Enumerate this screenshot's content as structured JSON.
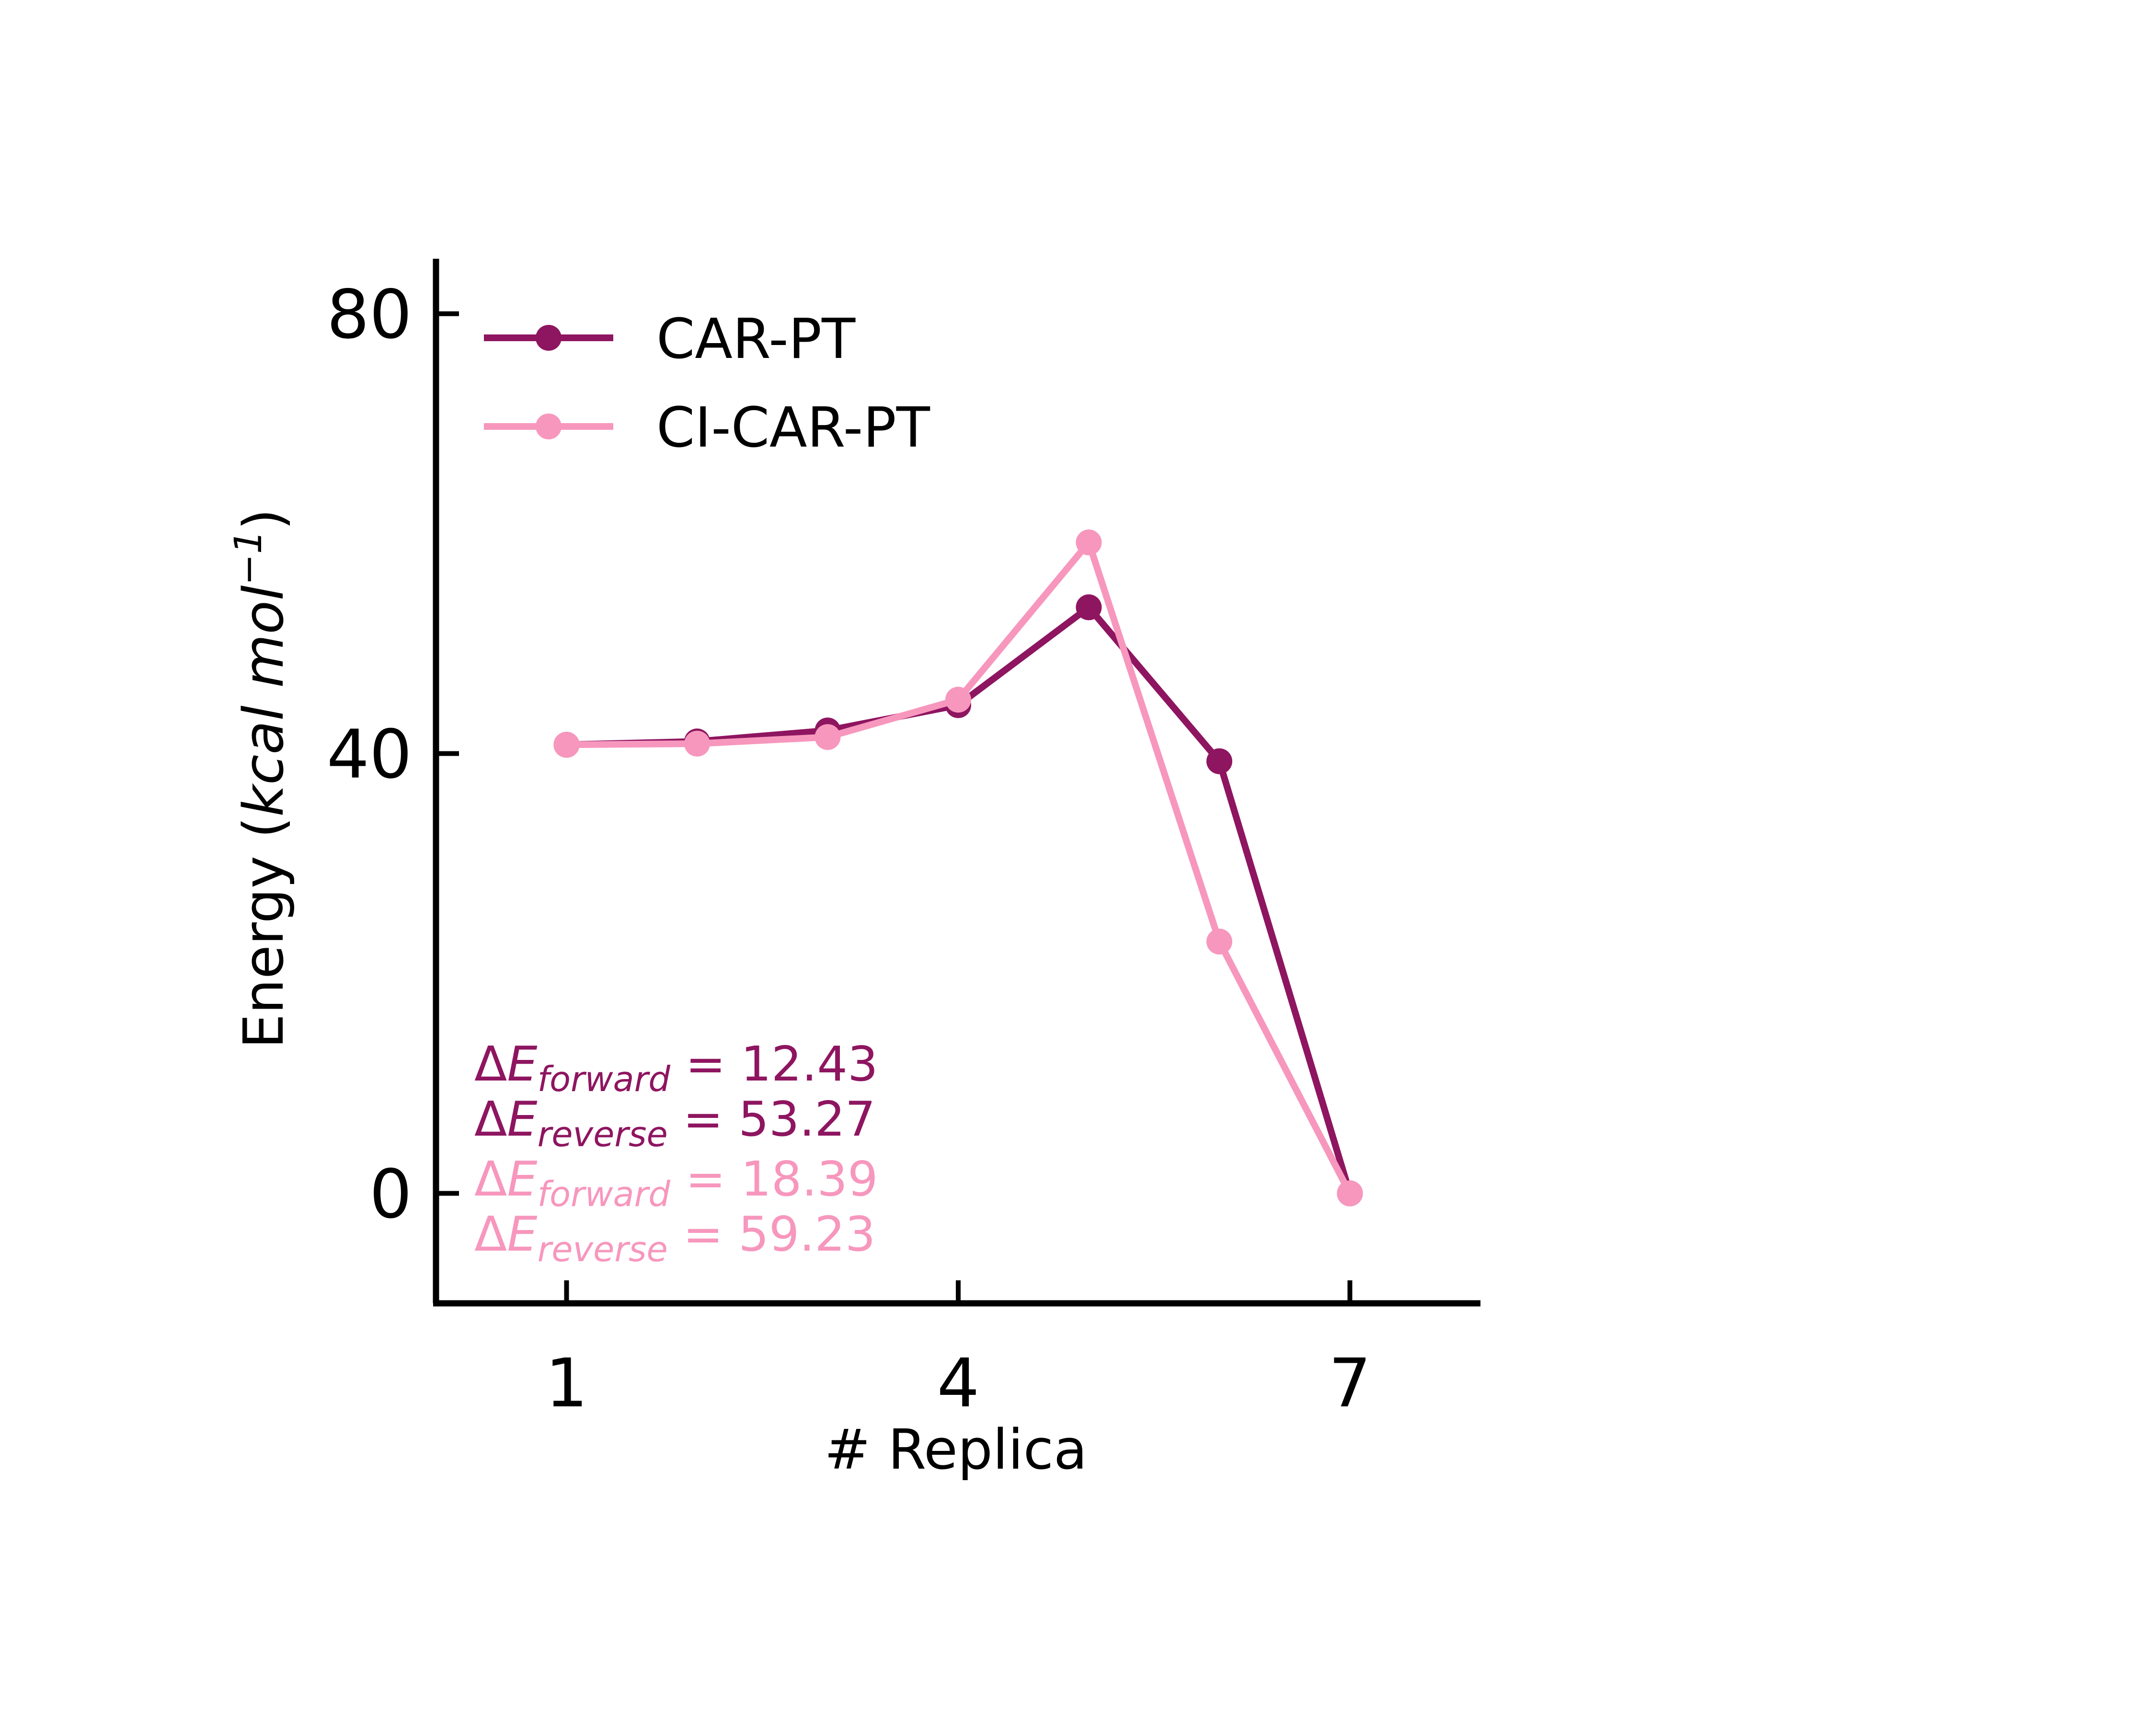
{
  "chart_data": {
    "type": "line",
    "xlabel": "# Replica",
    "ylabel": {
      "prefix": "Energy (",
      "italic": "kcal mol",
      "superscript": "−1",
      "suffix": ")"
    },
    "xlim": [
      0,
      8
    ],
    "ylim": [
      -10,
      85
    ],
    "x_ticks": [
      1,
      4,
      7
    ],
    "y_ticks": [
      0,
      40,
      80
    ],
    "x": [
      1,
      2,
      3,
      4,
      5,
      6,
      7
    ],
    "legend_position": "top-left",
    "series": [
      {
        "name": "CAR-PT",
        "color": "#8e1560",
        "values": [
          40.8,
          41.1,
          42.1,
          44.4,
          53.3,
          39.3,
          0.0
        ]
      },
      {
        "name": "CI-CAR-PT",
        "color": "#f797bd",
        "values": [
          40.8,
          40.9,
          41.5,
          44.9,
          59.2,
          22.9,
          0.0
        ]
      }
    ],
    "annotations": [
      {
        "symbol": "ΔE",
        "subscript": "forward",
        "text": " = 12.43",
        "color": "#8e1560"
      },
      {
        "symbol": "ΔE",
        "subscript": "reverse",
        "text": " = 53.27",
        "color": "#8e1560"
      },
      {
        "symbol": "ΔE",
        "subscript": "forward",
        "text": " = 18.39",
        "color": "#f797bd"
      },
      {
        "symbol": "ΔE",
        "subscript": "reverse",
        "text": " = 59.23",
        "color": "#f797bd"
      }
    ]
  }
}
